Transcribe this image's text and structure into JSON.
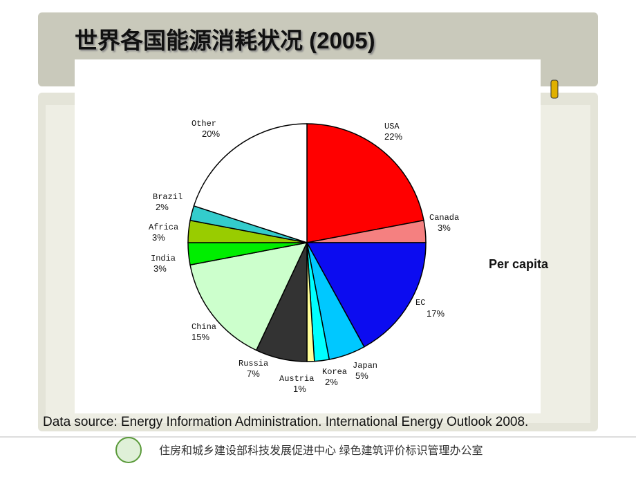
{
  "chart_data": {
    "type": "pie",
    "title": "世界各国能源消耗状况 (2005)",
    "categories": [
      "USA",
      "Canada",
      "EC",
      "Japan",
      "Korea",
      "Austria",
      "Russia",
      "China",
      "India",
      "Africa",
      "Brazil",
      "Other"
    ],
    "values": [
      22,
      3,
      17,
      5,
      2,
      1,
      7,
      15,
      3,
      3,
      2,
      20
    ],
    "value_labels": [
      "22%",
      "3%",
      "17%",
      "5%",
      "2%",
      "1%",
      "7%",
      "15%",
      "3%",
      "3%",
      "2%",
      "20%"
    ],
    "colors": [
      "#ff0000",
      "#f58080",
      "#0c0cf0",
      "#00c8ff",
      "#00ffff",
      "#ffff99",
      "#333333",
      "#ccffcc",
      "#00ee00",
      "#99cc00",
      "#33cccc",
      "#ffffff"
    ],
    "annotation": "Per capita"
  },
  "source": "Data source: Energy Information Administration. International Energy Outlook 2008.",
  "footer": "住房和城乡建设部科技发展促进中心  绿色建筑评价标识管理办公室"
}
